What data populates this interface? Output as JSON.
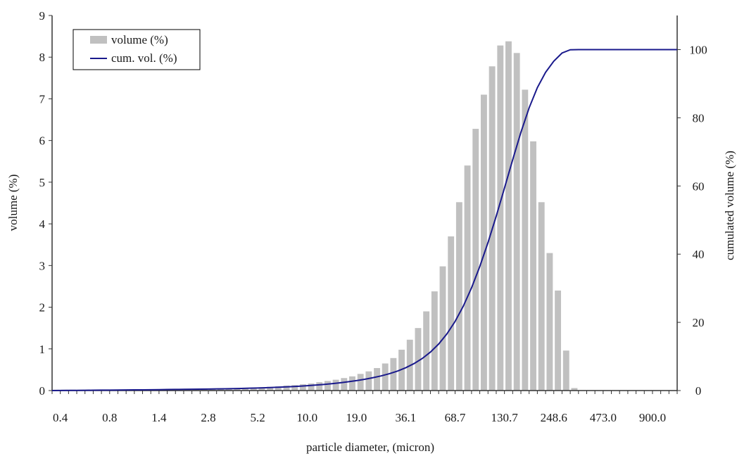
{
  "chart_data": {
    "type": "bar",
    "xlabel": "particle diameter, (micron)",
    "ylabel_left": "volume (%)",
    "ylabel_right": "cumulated volume (%)",
    "ylim_left": [
      0,
      9
    ],
    "ylim_right": [
      0,
      110
    ],
    "y_ticks_left": [
      "0",
      "1",
      "2",
      "3",
      "4",
      "5",
      "6",
      "7",
      "8",
      "9"
    ],
    "y_ticks_right": [
      "0",
      "20",
      "40",
      "60",
      "80",
      "100"
    ],
    "x_tick_labels": [
      "0.4",
      "0.8",
      "1.4",
      "2.8",
      "5.2",
      "10.0",
      "19.0",
      "36.1",
      "68.7",
      "130.7",
      "248.6",
      "473.0",
      "900.0"
    ],
    "bin_count": 76,
    "legend_position": "top-left",
    "grid": false,
    "series": [
      {
        "name": "volume (%)",
        "type": "bar",
        "axis": "left",
        "color": "#c0c0c0",
        "values": [
          0.02,
          0.02,
          0.02,
          0.02,
          0.02,
          0.02,
          0.02,
          0.02,
          0.02,
          0.02,
          0.02,
          0.02,
          0.03,
          0.03,
          0.03,
          0.03,
          0.03,
          0.03,
          0.03,
          0.04,
          0.04,
          0.05,
          0.05,
          0.06,
          0.07,
          0.08,
          0.09,
          0.1,
          0.12,
          0.13,
          0.15,
          0.17,
          0.2,
          0.23,
          0.26,
          0.3,
          0.34,
          0.4,
          0.46,
          0.54,
          0.65,
          0.78,
          0.98,
          1.22,
          1.5,
          1.9,
          2.38,
          2.98,
          3.7,
          4.52,
          5.4,
          6.28,
          7.1,
          7.78,
          8.28,
          8.38,
          8.1,
          7.22,
          5.98,
          4.52,
          3.3,
          2.4,
          0.96,
          0.06,
          0.0,
          0.0,
          0.0,
          0.0,
          0.0,
          0.0,
          0.0,
          0.0,
          0.0,
          0.0,
          0.0,
          0.0
        ]
      },
      {
        "name": "cum. vol. (%)",
        "type": "line",
        "axis": "right",
        "color": "#1a1a8c"
      }
    ]
  }
}
